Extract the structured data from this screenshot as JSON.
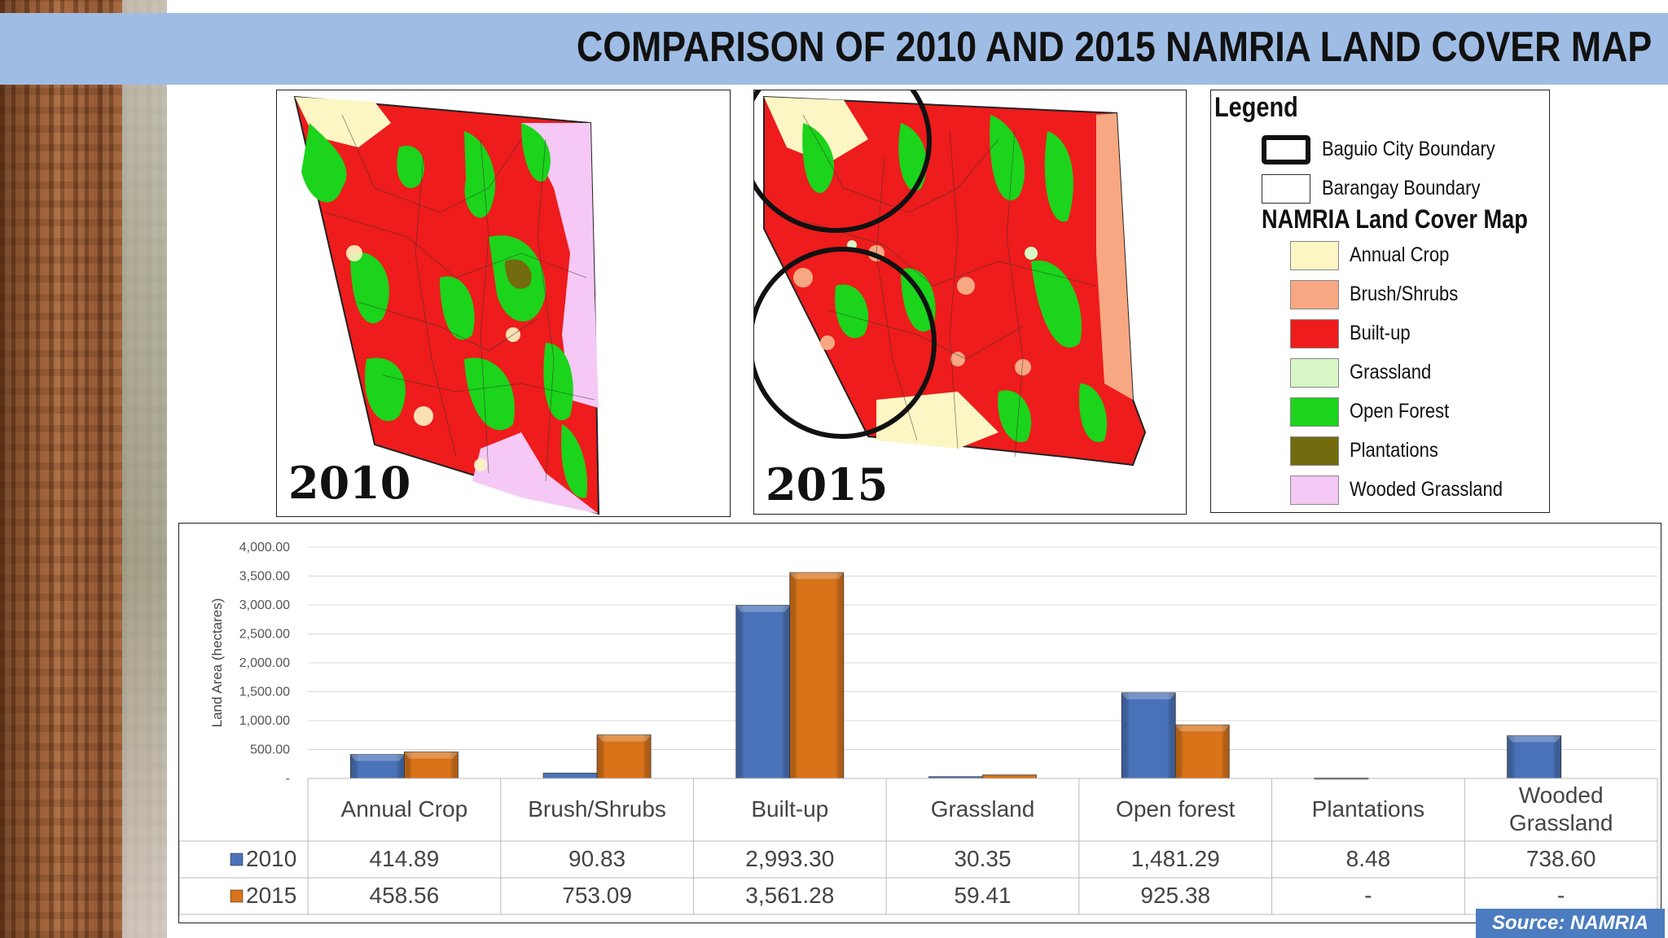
{
  "title": "COMPARISON OF 2010 AND 2015 NAMRIA LAND COVER MAP",
  "maps": [
    {
      "year_label": "2010"
    },
    {
      "year_label": "2015"
    }
  ],
  "legend": {
    "title": "Legend",
    "boundaries": [
      "Baguio City Boundary",
      "Barangay Boundary"
    ],
    "section_title": "NAMRIA Land Cover Map",
    "items": [
      {
        "label": "Annual Crop",
        "color": "#fcf6c4"
      },
      {
        "label": "Brush/Shrubs",
        "color": "#f7a882"
      },
      {
        "label": "Built-up",
        "color": "#ee1c1c"
      },
      {
        "label": "Grassland",
        "color": "#d8f7c6"
      },
      {
        "label": "Open Forest",
        "color": "#1bd41b"
      },
      {
        "label": "Plantations",
        "color": "#736b0e"
      },
      {
        "label": "Wooded Grassland",
        "color": "#f5c8f5"
      }
    ]
  },
  "chart_data": {
    "type": "bar",
    "ylabel": "Land Area (hectares)",
    "ylim": [
      0,
      4000
    ],
    "yticks": [
      "-",
      "500.00",
      "1,000.00",
      "1,500.00",
      "2,000.00",
      "2,500.00",
      "3,000.00",
      "3,500.00",
      "4,000.00"
    ],
    "grid": true,
    "categories": [
      "Annual Crop",
      "Brush/Shrubs",
      "Built-up",
      "Grassland",
      "Open forest",
      "Plantations",
      "Wooded Grassland"
    ],
    "series": [
      {
        "name": "2010",
        "color": "#4a72b8",
        "values": [
          414.89,
          90.83,
          2993.3,
          30.35,
          1481.29,
          8.48,
          738.6
        ],
        "labels": [
          "414.89",
          "90.83",
          "2,993.30",
          "30.35",
          "1,481.29",
          "8.48",
          "738.60"
        ]
      },
      {
        "name": "2015",
        "color": "#d9731a",
        "values": [
          458.56,
          753.09,
          3561.28,
          59.41,
          925.38,
          null,
          null
        ],
        "labels": [
          "458.56",
          "753.09",
          "3,561.28",
          "59.41",
          "925.38",
          "-",
          "-"
        ]
      }
    ]
  },
  "source": "Source: NAMRIA"
}
